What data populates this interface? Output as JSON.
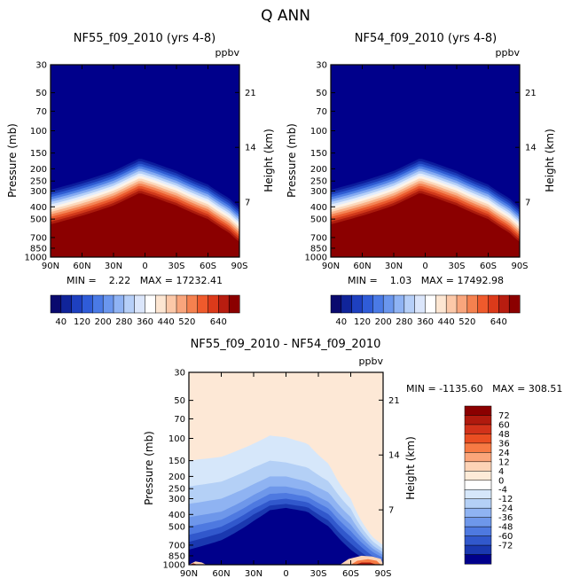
{
  "chart_data": {
    "title": "Q ANN",
    "units": "ppbv",
    "panels": [
      {
        "type": "contour",
        "title": "NF55_f09_2010 (yrs 4-8)",
        "units": "ppbv",
        "xlabel": "",
        "ylabel": "Pressure (mb)",
        "right_ylabel": "Height (km)",
        "x_ticks": [
          "90N",
          "60N",
          "30N",
          "0",
          "30S",
          "60S",
          "90S"
        ],
        "x_tick_values": [
          90,
          60,
          30,
          0,
          -30,
          -60,
          -90
        ],
        "y_ticks": [
          "30",
          "50",
          "70",
          "100",
          "150",
          "200",
          "250",
          "300",
          "400",
          "500",
          "700",
          "850",
          "1000"
        ],
        "y_tick_values": [
          30,
          50,
          70,
          100,
          150,
          200,
          250,
          300,
          400,
          500,
          700,
          850,
          1000
        ],
        "right_y_ticks": [
          "21",
          "14",
          "7"
        ],
        "right_y_tick_values": [
          21,
          14,
          7
        ],
        "ylim": [
          1000,
          30
        ],
        "min_label": "MIN =",
        "min_value": "2.22",
        "max_label": "MAX =",
        "max_value": "17232.41",
        "min_text": "MIN =    2.22   MAX = 17232.41",
        "saturation_boundary": {
          "lat": [
            90,
            60,
            30,
            15,
            5,
            0,
            -10,
            -30,
            -60,
            -80,
            -90
          ],
          "pressure": [
            550,
            470,
            390,
            340,
            310,
            320,
            340,
            390,
            500,
            640,
            760
          ]
        }
      },
      {
        "type": "contour",
        "title": "NF54_f09_2010 (yrs 4-8)",
        "units": "ppbv",
        "xlabel": "",
        "ylabel": "Pressure (mb)",
        "right_ylabel": "Height (km)",
        "x_ticks": [
          "90N",
          "60N",
          "30N",
          "0",
          "30S",
          "60S",
          "90S"
        ],
        "x_tick_values": [
          90,
          60,
          30,
          0,
          -30,
          -60,
          -90
        ],
        "y_ticks": [
          "30",
          "50",
          "70",
          "100",
          "150",
          "200",
          "250",
          "300",
          "400",
          "500",
          "700",
          "850",
          "1000"
        ],
        "y_tick_values": [
          30,
          50,
          70,
          100,
          150,
          200,
          250,
          300,
          400,
          500,
          700,
          850,
          1000
        ],
        "right_y_ticks": [
          "21",
          "14",
          "7"
        ],
        "right_y_tick_values": [
          21,
          14,
          7
        ],
        "ylim": [
          1000,
          30
        ],
        "min_label": "MIN =",
        "min_value": "1.03",
        "max_label": "MAX =",
        "max_value": "17492.98",
        "min_text": "MIN =    1.03   MAX = 17492.98",
        "saturation_boundary": {
          "lat": [
            90,
            60,
            30,
            15,
            5,
            0,
            -10,
            -30,
            -60,
            -80,
            -90
          ],
          "pressure": [
            550,
            470,
            390,
            340,
            310,
            320,
            340,
            390,
            500,
            640,
            760
          ]
        }
      },
      {
        "type": "contour",
        "title": "NF55_f09_2010 - NF54_f09_2010",
        "units": "ppbv",
        "xlabel": "",
        "ylabel": "Pressure (mb)",
        "right_ylabel": "Height (km)",
        "x_ticks": [
          "90N",
          "60N",
          "30N",
          "0",
          "30S",
          "60S",
          "90S"
        ],
        "x_tick_values": [
          90,
          60,
          30,
          0,
          -30,
          -60,
          -90
        ],
        "y_ticks": [
          "30",
          "50",
          "70",
          "100",
          "150",
          "200",
          "250",
          "300",
          "400",
          "500",
          "700",
          "850",
          "1000"
        ],
        "y_tick_values": [
          30,
          50,
          70,
          100,
          150,
          200,
          250,
          300,
          400,
          500,
          700,
          850,
          1000
        ],
        "right_y_ticks": [
          "21",
          "14",
          "7"
        ],
        "right_y_tick_values": [
          21,
          14,
          7
        ],
        "ylim": [
          1000,
          30
        ],
        "min_label": "MIN =",
        "min_value": "-1135.60",
        "max_label": "MAX =",
        "max_value": "308.51",
        "min_text": "MIN = -1135.60   MAX = 308.51"
      }
    ],
    "colorbar_abs": {
      "orientation": "horizontal",
      "labels": [
        "40",
        "120",
        "200",
        "280",
        "360",
        "440",
        "520",
        "640"
      ],
      "colors": [
        "#0a0a6e",
        "#10249a",
        "#1e40c0",
        "#2f5cd8",
        "#4a7ae6",
        "#6a96ee",
        "#8fb3f4",
        "#b6cff8",
        "#dbe6fb",
        "#ffffff",
        "#fde6d2",
        "#fcc8a8",
        "#f9a57c",
        "#f5814f",
        "#ef5a2c",
        "#dc3a1a",
        "#b81d10",
        "#8b0000"
      ]
    },
    "colorbar_diff": {
      "orientation": "vertical",
      "labels": [
        "72",
        "60",
        "48",
        "36",
        "24",
        "12",
        "4",
        "0",
        "-4",
        "-12",
        "-24",
        "-36",
        "-48",
        "-60",
        "-72"
      ],
      "colors": [
        "#8b0000",
        "#b01a0e",
        "#d2321a",
        "#ea4e22",
        "#f77a44",
        "#fba57a",
        "#fdd3b6",
        "#fdebd8",
        "#ffffff",
        "#d6e7fa",
        "#b4d0f6",
        "#8fb3f2",
        "#6e97ea",
        "#4e79e0",
        "#3158cc",
        "#1a38b0",
        "#00008b"
      ]
    },
    "abs_level_colors": [
      "#00008b",
      "#0c1c9c",
      "#1a3ab6",
      "#2e5bd2",
      "#5282e6",
      "#84aaf2",
      "#b4cff8",
      "#e2ecfc",
      "#fdf3e8",
      "#fcd9bd",
      "#f9b28a",
      "#f48556",
      "#e95a2e",
      "#d0381a",
      "#ab1b0d",
      "#8b0000"
    ],
    "diff_bg_color": "#fde8d6"
  }
}
